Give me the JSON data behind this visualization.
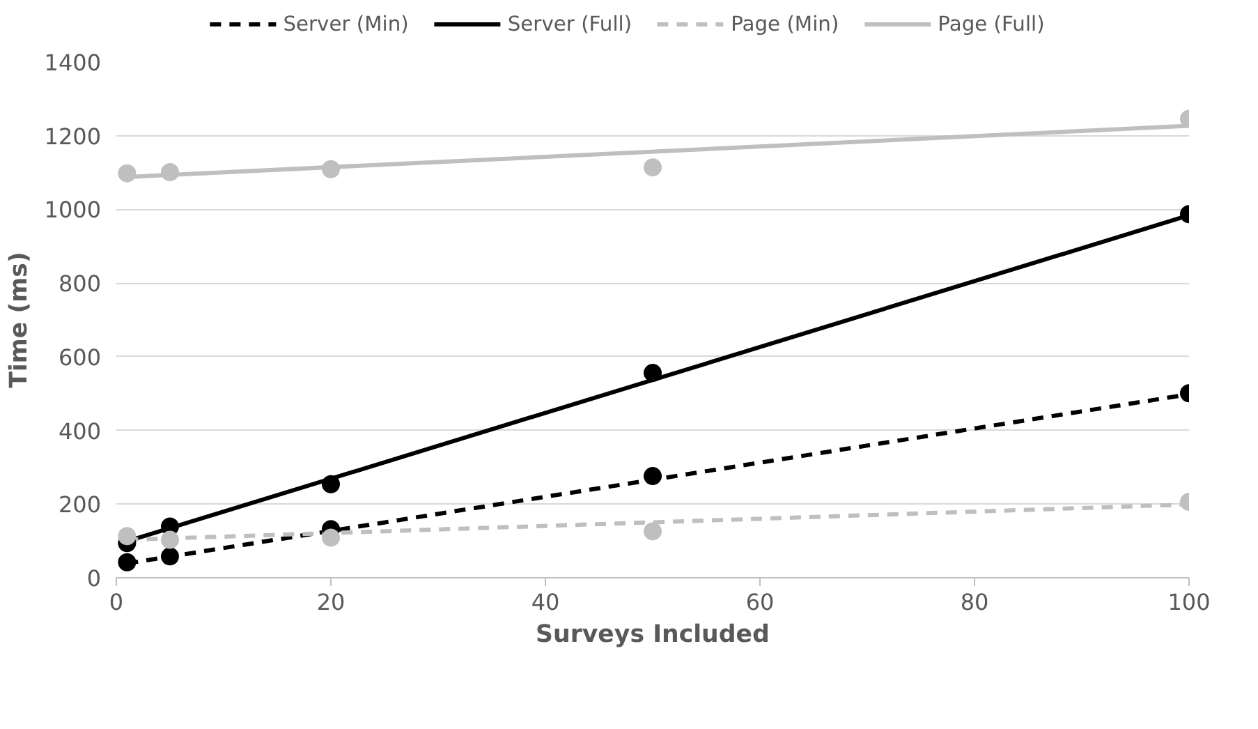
{
  "chart_data": {
    "type": "scatter",
    "xlabel": "Surveys Included",
    "ylabel": "Time (ms)",
    "xlim": [
      0,
      100
    ],
    "xticks": [
      0,
      20,
      40,
      60,
      80,
      100
    ],
    "ylim": [
      0,
      1400
    ],
    "yticks": [
      0,
      200,
      400,
      600,
      800,
      1000,
      1200,
      1400
    ],
    "grid": "y",
    "legend": "top",
    "series": [
      {
        "marker": "circle",
        "color": "#000000",
        "x": [
          1,
          5,
          20,
          50,
          100
        ],
        "values": [
          42,
          58,
          132,
          276,
          501
        ]
      },
      {
        "marker": "circle",
        "color": "#000000",
        "x": [
          1,
          5,
          20,
          50,
          100
        ],
        "values": [
          94,
          139,
          254,
          556,
          987
        ]
      },
      {
        "marker": "circle",
        "color": "#bfbfbf",
        "x": [
          1,
          5,
          20,
          50,
          100
        ],
        "values": [
          113,
          103,
          109,
          126,
          206
        ]
      },
      {
        "marker": "circle",
        "color": "#bfbfbf",
        "x": [
          1,
          5,
          20,
          50,
          100
        ],
        "values": [
          1098,
          1101,
          1109,
          1114,
          1246
        ]
      },
      {
        "type": "line",
        "name": "Server (Min)",
        "line_style": "dashed",
        "color": "#000000",
        "x": [
          1,
          100
        ],
        "values": [
          39,
          498
        ]
      },
      {
        "type": "line",
        "name": "Server (Full)",
        "line_style": "solid",
        "color": "#000000",
        "x": [
          1,
          100
        ],
        "values": [
          99,
          984
        ]
      },
      {
        "type": "line",
        "name": "Page (Min)",
        "line_style": "dashed",
        "color": "#bfbfbf",
        "x": [
          1,
          100
        ],
        "values": [
          103,
          199
        ]
      },
      {
        "type": "line",
        "name": "Page (Full)",
        "line_style": "solid",
        "color": "#bfbfbf",
        "x": [
          1,
          100
        ],
        "values": [
          1088,
          1227
        ]
      }
    ]
  }
}
